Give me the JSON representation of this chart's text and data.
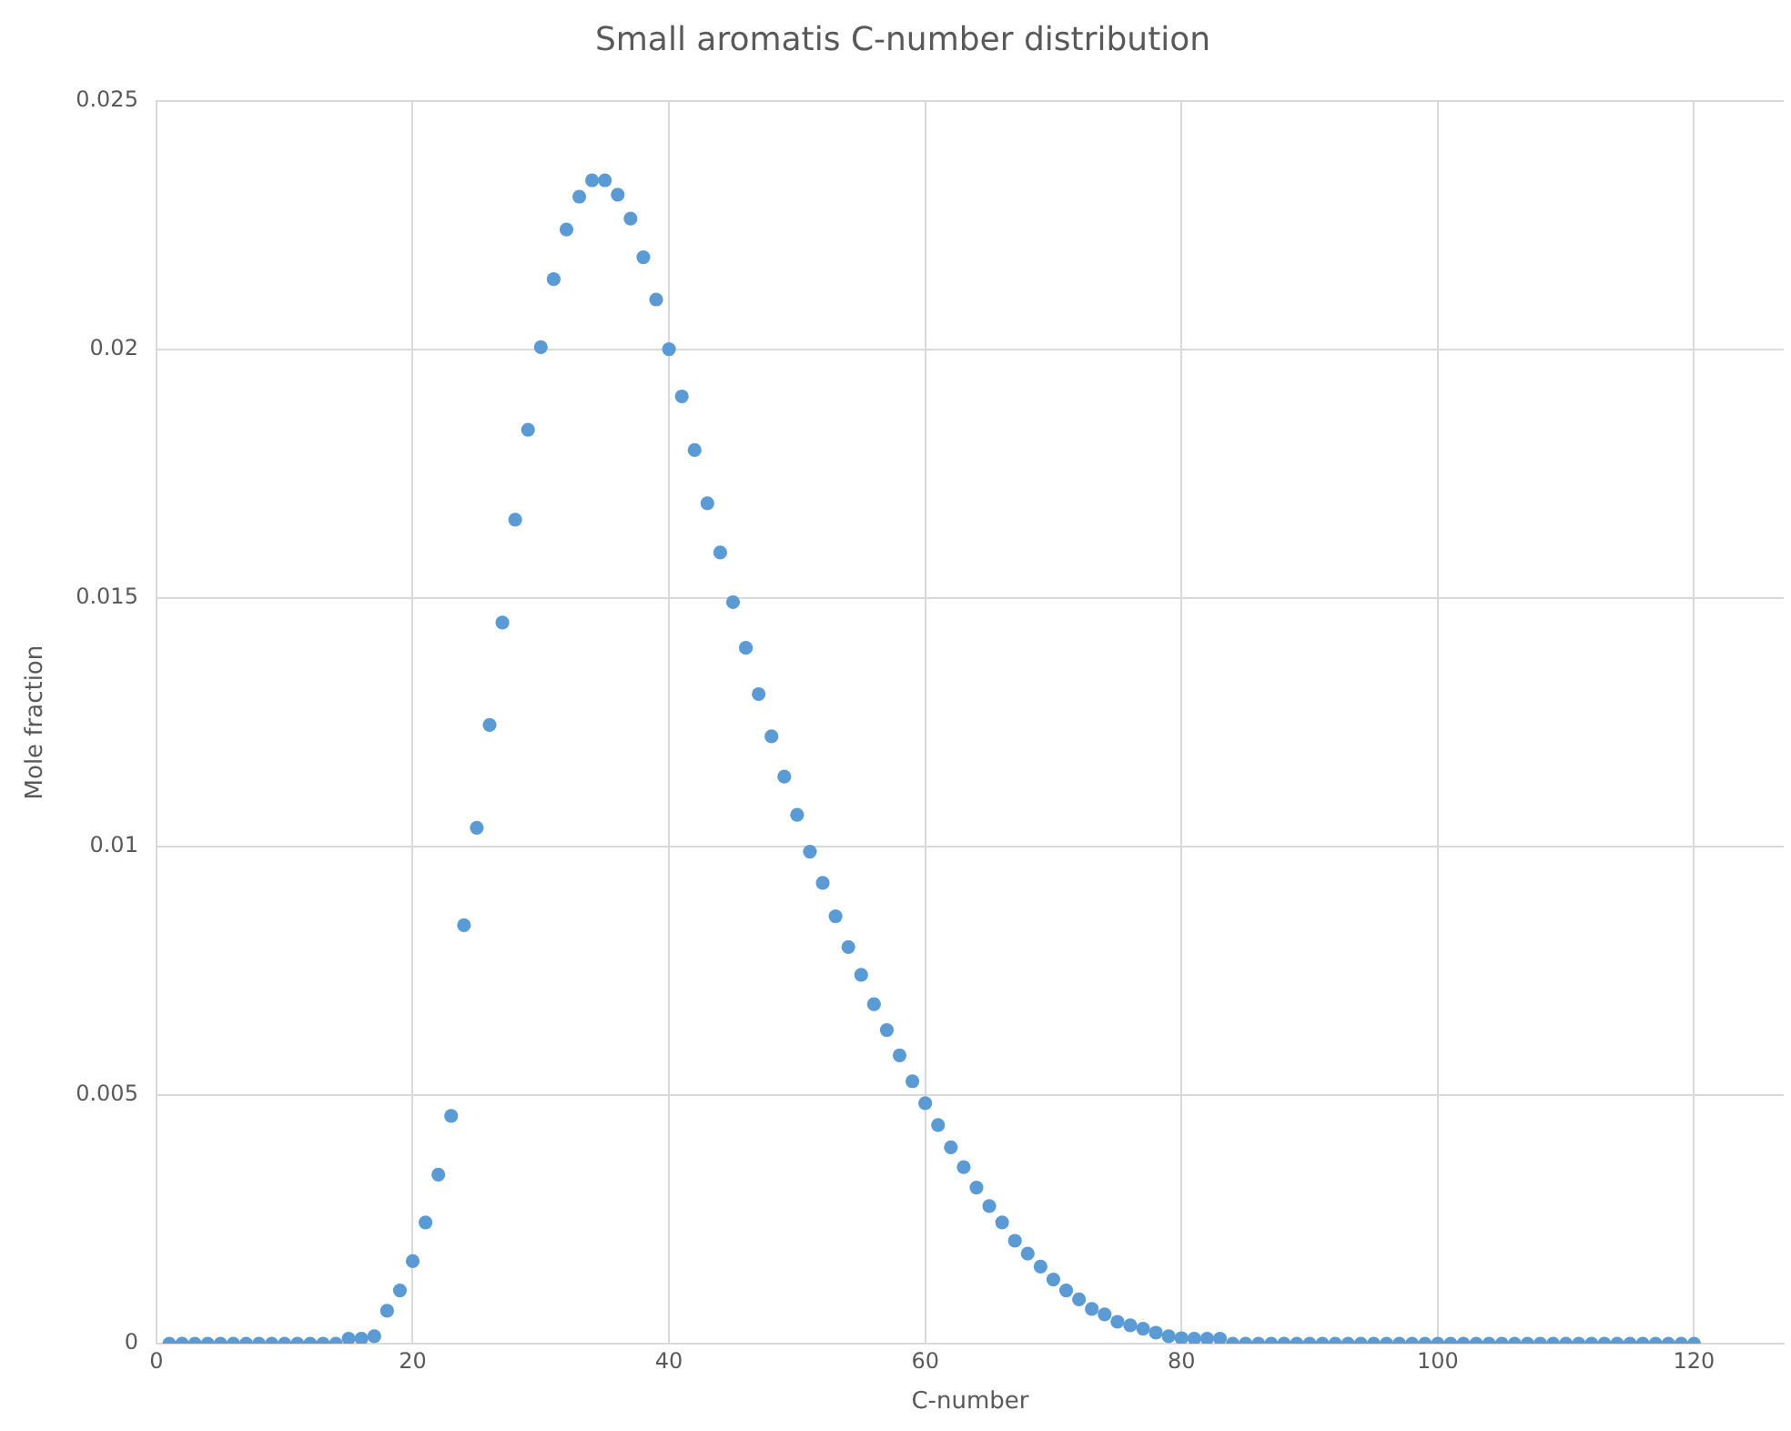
{
  "chart_data": {
    "type": "scatter",
    "title": "Small aromatis C-number distribution",
    "xlabel": "C-number",
    "ylabel": "Mole fraction",
    "x": [
      1,
      2,
      3,
      4,
      5,
      6,
      7,
      8,
      9,
      10,
      11,
      12,
      13,
      14,
      15,
      16,
      17,
      18,
      19,
      20,
      21,
      22,
      23,
      24,
      25,
      26,
      27,
      28,
      29,
      30,
      31,
      32,
      33,
      34,
      35,
      36,
      37,
      38,
      39,
      40,
      41,
      42,
      43,
      44,
      45,
      46,
      47,
      48,
      49,
      50,
      51,
      52,
      53,
      54,
      55,
      56,
      57,
      58,
      59,
      60,
      61,
      62,
      63,
      64,
      65,
      66,
      67,
      68,
      69,
      70,
      71,
      72,
      73,
      74,
      75,
      76,
      77,
      78,
      79,
      80,
      81,
      82,
      83,
      84,
      85,
      86,
      87,
      88,
      89,
      90,
      91,
      92,
      93,
      94,
      95,
      96,
      97,
      98,
      99,
      100,
      101,
      102,
      103,
      104,
      105,
      106,
      107,
      108,
      109,
      110,
      111,
      112,
      113,
      114,
      115,
      116,
      117,
      118,
      119,
      120
    ],
    "series": [
      {
        "color": "#5b9bd5",
        "values": [
          0,
          0,
          0,
          0,
          0,
          0,
          0,
          0,
          0,
          0,
          0,
          0,
          0,
          0,
          0.0001,
          0.0001,
          0.00015,
          0.00066,
          0.00107,
          0.00166,
          0.00244,
          0.0034,
          0.00458,
          0.00842,
          0.01038,
          0.01245,
          0.01451,
          0.01658,
          0.01839,
          0.02005,
          0.02142,
          0.02242,
          0.02308,
          0.02341,
          0.02341,
          0.02312,
          0.02264,
          0.02186,
          0.02101,
          0.02001,
          0.01906,
          0.01798,
          0.01691,
          0.01592,
          0.01492,
          0.014,
          0.01307,
          0.01222,
          0.01141,
          0.01064,
          0.0099,
          0.00927,
          0.0086,
          0.00798,
          0.00742,
          0.00683,
          0.00631,
          0.0058,
          0.00528,
          0.00484,
          0.0044,
          0.00395,
          0.00355,
          0.00314,
          0.00277,
          0.00244,
          0.00207,
          0.00181,
          0.00155,
          0.00129,
          0.00107,
          0.00089,
          0.0007,
          0.00059,
          0.00044,
          0.00037,
          0.0003,
          0.00022,
          0.00015,
          0.00011,
          0.0001,
          0.0001,
          0.0001,
          0,
          0,
          0,
          0,
          0,
          0,
          0,
          0,
          0,
          0,
          0,
          0,
          0,
          0,
          0,
          0,
          0,
          0,
          0,
          0,
          0,
          0,
          0,
          0,
          0,
          0,
          0,
          0,
          0,
          0,
          0,
          0,
          0,
          0,
          0,
          0,
          0
        ]
      }
    ],
    "xlim": [
      0,
      127
    ],
    "xticks": [
      0,
      20,
      40,
      60,
      80,
      100,
      120
    ],
    "ylim": [
      0,
      0.025
    ],
    "yticks": [
      0,
      0.005,
      0.01,
      0.015,
      0.02,
      0.025
    ],
    "grid": true,
    "legend": false,
    "marker": "circle"
  }
}
